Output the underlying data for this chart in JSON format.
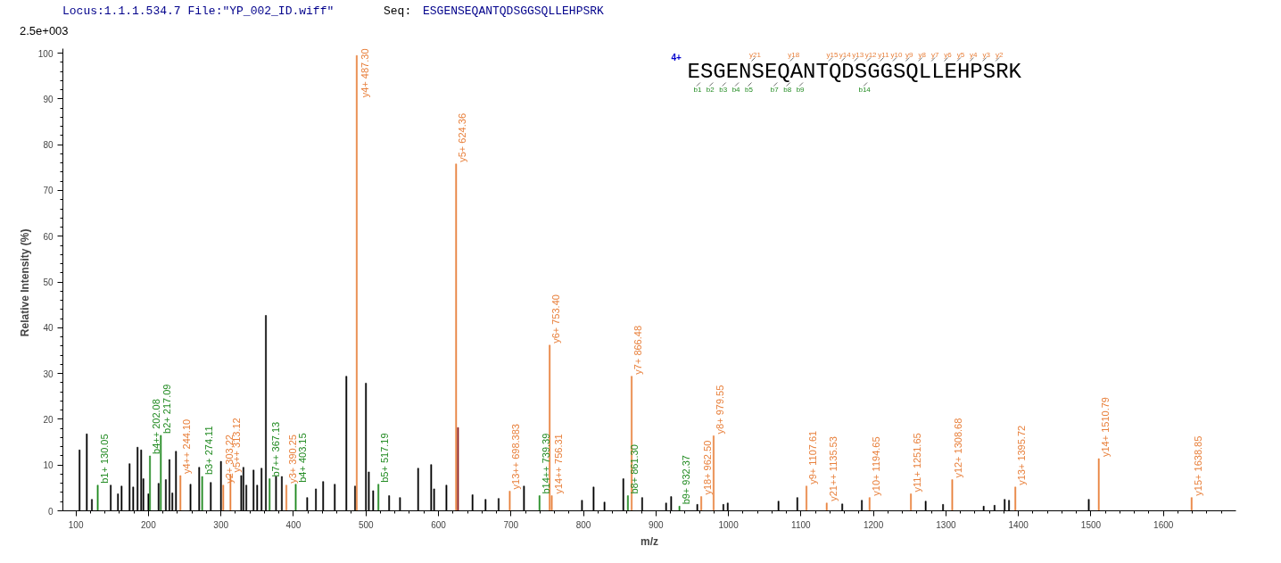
{
  "chart_data": {
    "type": "bar",
    "xlabel": "m/z",
    "ylabel": "Relative   Intensity (%)",
    "annotations": [
      "Locus:1.1.1.534.7 File:\"YP_002_ID.wiff\"",
      "Seq:",
      "ESGENSEQANTQDSGGSQLLEHPSRK",
      "2.5e+003",
      "4+",
      "ESGENSEQANTQDSGGSQLLEHPSRK",
      "y21",
      "y18",
      "y15",
      "y14",
      "y13",
      "y12",
      "y11",
      "y10",
      "y9",
      "y8",
      "y7",
      "y6",
      "y5",
      "y4",
      "y3",
      "y2",
      "b1",
      "b2",
      "b3",
      "b4",
      "b5",
      "b7",
      "b8",
      "b9",
      "b14"
    ],
    "x": [
      105,
      115,
      122,
      130.05,
      148,
      158,
      163,
      174,
      179,
      185,
      190,
      193,
      200,
      202.08,
      214,
      217.09,
      224,
      229,
      233,
      238,
      244.1,
      258,
      270,
      274.11,
      286,
      300,
      303.22,
      313.12,
      328,
      331,
      335,
      345,
      350,
      356,
      362,
      367.13,
      376,
      384,
      390.25,
      403.15,
      419,
      431,
      441,
      457,
      473,
      485,
      487.3,
      500,
      504,
      510,
      517.19,
      532,
      547,
      572,
      590,
      594,
      611,
      624.36,
      627,
      647,
      665,
      683,
      698.383,
      718,
      739.39,
      753.4,
      756.31,
      798,
      814,
      829,
      855,
      861.3,
      866.48,
      881,
      914,
      921,
      932.37,
      957,
      962.5,
      979.55,
      993,
      999,
      1069,
      1095,
      1107.61,
      1135.53,
      1157,
      1184,
      1194.65,
      1251.65,
      1272,
      1296,
      1308.68,
      1352,
      1367,
      1381,
      1387,
      1395.72,
      1497,
      1510.79,
      1638.85
    ],
    "values": [
      13.3,
      16.8,
      2.5,
      5.6,
      5.6,
      3.7,
      5.4,
      10.3,
      5.2,
      13.9,
      13.3,
      7,
      3.7,
      12,
      6,
      16.5,
      6.8,
      11.2,
      3.9,
      13,
      7.7,
      5.8,
      9.5,
      7.5,
      6.2,
      10.8,
      5.6,
      8,
      7.7,
      9.5,
      5.6,
      8.9,
      5.6,
      9.3,
      42.7,
      7,
      7.5,
      7.5,
      5.6,
      5.8,
      2.9,
      4.8,
      6.4,
      5.8,
      29.4,
      5.4,
      99.5,
      27.9,
      8.5,
      4.4,
      5.8,
      3.3,
      2.9,
      9.3,
      10.1,
      4.8,
      5.6,
      75.8,
      18.2,
      3.5,
      2.5,
      2.7,
      4.3,
      5.4,
      3.3,
      36.2,
      3.3,
      2.3,
      5.2,
      1.9,
      7,
      3.3,
      29.4,
      2.9,
      1.7,
      3.1,
      1,
      1.4,
      3.1,
      16.4,
      1.4,
      1.7,
      2.1,
      2.9,
      5.4,
      1.7,
      1.5,
      2.3,
      2.9,
      3.7,
      2.1,
      1.4,
      6.8,
      1,
      1.2,
      2.5,
      2.3,
      5.2,
      2.5,
      11.4,
      2.9
    ],
    "colors": [
      "#000000",
      "#000000",
      "#000000",
      "#228b22",
      "#000000",
      "#000000",
      "#000000",
      "#000000",
      "#000000",
      "#000000",
      "#000000",
      "#000000",
      "#000000",
      "#228b22",
      "#000000",
      "#228b22",
      "#000000",
      "#000000",
      "#000000",
      "#000000",
      "#e8803c",
      "#000000",
      "#000000",
      "#228b22",
      "#000000",
      "#000000",
      "#e8803c",
      "#e8803c",
      "#000000",
      "#000000",
      "#000000",
      "#000000",
      "#000000",
      "#000000",
      "#000000",
      "#228b22",
      "#000000",
      "#000000",
      "#e8803c",
      "#228b22",
      "#000000",
      "#000000",
      "#000000",
      "#000000",
      "#000000",
      "#000000",
      "#e8803c",
      "#000000",
      "#000000",
      "#000000",
      "#228b22",
      "#000000",
      "#000000",
      "#000000",
      "#000000",
      "#000000",
      "#000000",
      "#e8803c",
      "#8b1a1a",
      "#000000",
      "#000000",
      "#000000",
      "#e8803c",
      "#000000",
      "#228b22",
      "#e8803c",
      "#e8803c",
      "#000000",
      "#000000",
      "#000000",
      "#000000",
      "#228b22",
      "#e8803c",
      "#000000",
      "#000000",
      "#000000",
      "#228b22",
      "#000000",
      "#e8803c",
      "#e8803c",
      "#000000",
      "#000000",
      "#000000",
      "#000000",
      "#e8803c",
      "#e8803c",
      "#000000",
      "#000000",
      "#e8803c",
      "#e8803c",
      "#000000",
      "#000000",
      "#e8803c",
      "#000000",
      "#000000",
      "#000000",
      "#000000",
      "#e8803c",
      "#000000",
      "#e8803c",
      "#e8803c"
    ],
    "value_labels": [
      null,
      null,
      null,
      "b1+ 130.05",
      null,
      null,
      null,
      null,
      null,
      null,
      null,
      null,
      null,
      "b4++ 202.08",
      null,
      "b2+ 217.09",
      null,
      null,
      null,
      null,
      "y4++ 244.10",
      null,
      null,
      "b3+ 274.11",
      null,
      null,
      "y2+ 303.22",
      "y5++ 313.12",
      null,
      null,
      null,
      null,
      null,
      null,
      null,
      "b7++ 367.13",
      null,
      null,
      "y3+ 390.25",
      "b4+ 403.15",
      null,
      null,
      null,
      null,
      null,
      null,
      "y4+ 487.30",
      null,
      null,
      null,
      "b5+ 517.19",
      null,
      null,
      null,
      null,
      null,
      null,
      "y5+ 624.36",
      null,
      null,
      null,
      null,
      "y13++ 698.383",
      null,
      "b14++ 739.39",
      "y6+ 753.40",
      "y14++ 756.31",
      null,
      null,
      null,
      null,
      "b8+ 861.30",
      "y7+ 866.48",
      null,
      null,
      null,
      "b9+ 932.37",
      null,
      "y18+ 962.50",
      "y8+ 979.55",
      null,
      null,
      null,
      null,
      "y9+ 1107.61",
      "y21++ 1135.53",
      null,
      null,
      "y10+ 1194.65",
      "y11+ 1251.65",
      null,
      null,
      "y12+ 1308.68",
      null,
      null,
      null,
      null,
      "y13+ 1395.72",
      null,
      "y14+ 1510.79",
      "y15+ 1638.85"
    ],
    "xlim": [
      82,
      1700
    ],
    "ylim": [
      0,
      101
    ],
    "xticks": [
      100,
      200,
      300,
      400,
      500,
      600,
      700,
      800,
      900,
      1000,
      1100,
      1200,
      1300,
      1400,
      1500,
      1600
    ],
    "yticks": [
      0,
      10,
      20,
      30,
      40,
      50,
      60,
      70,
      80,
      90,
      100
    ],
    "grid": false
  }
}
